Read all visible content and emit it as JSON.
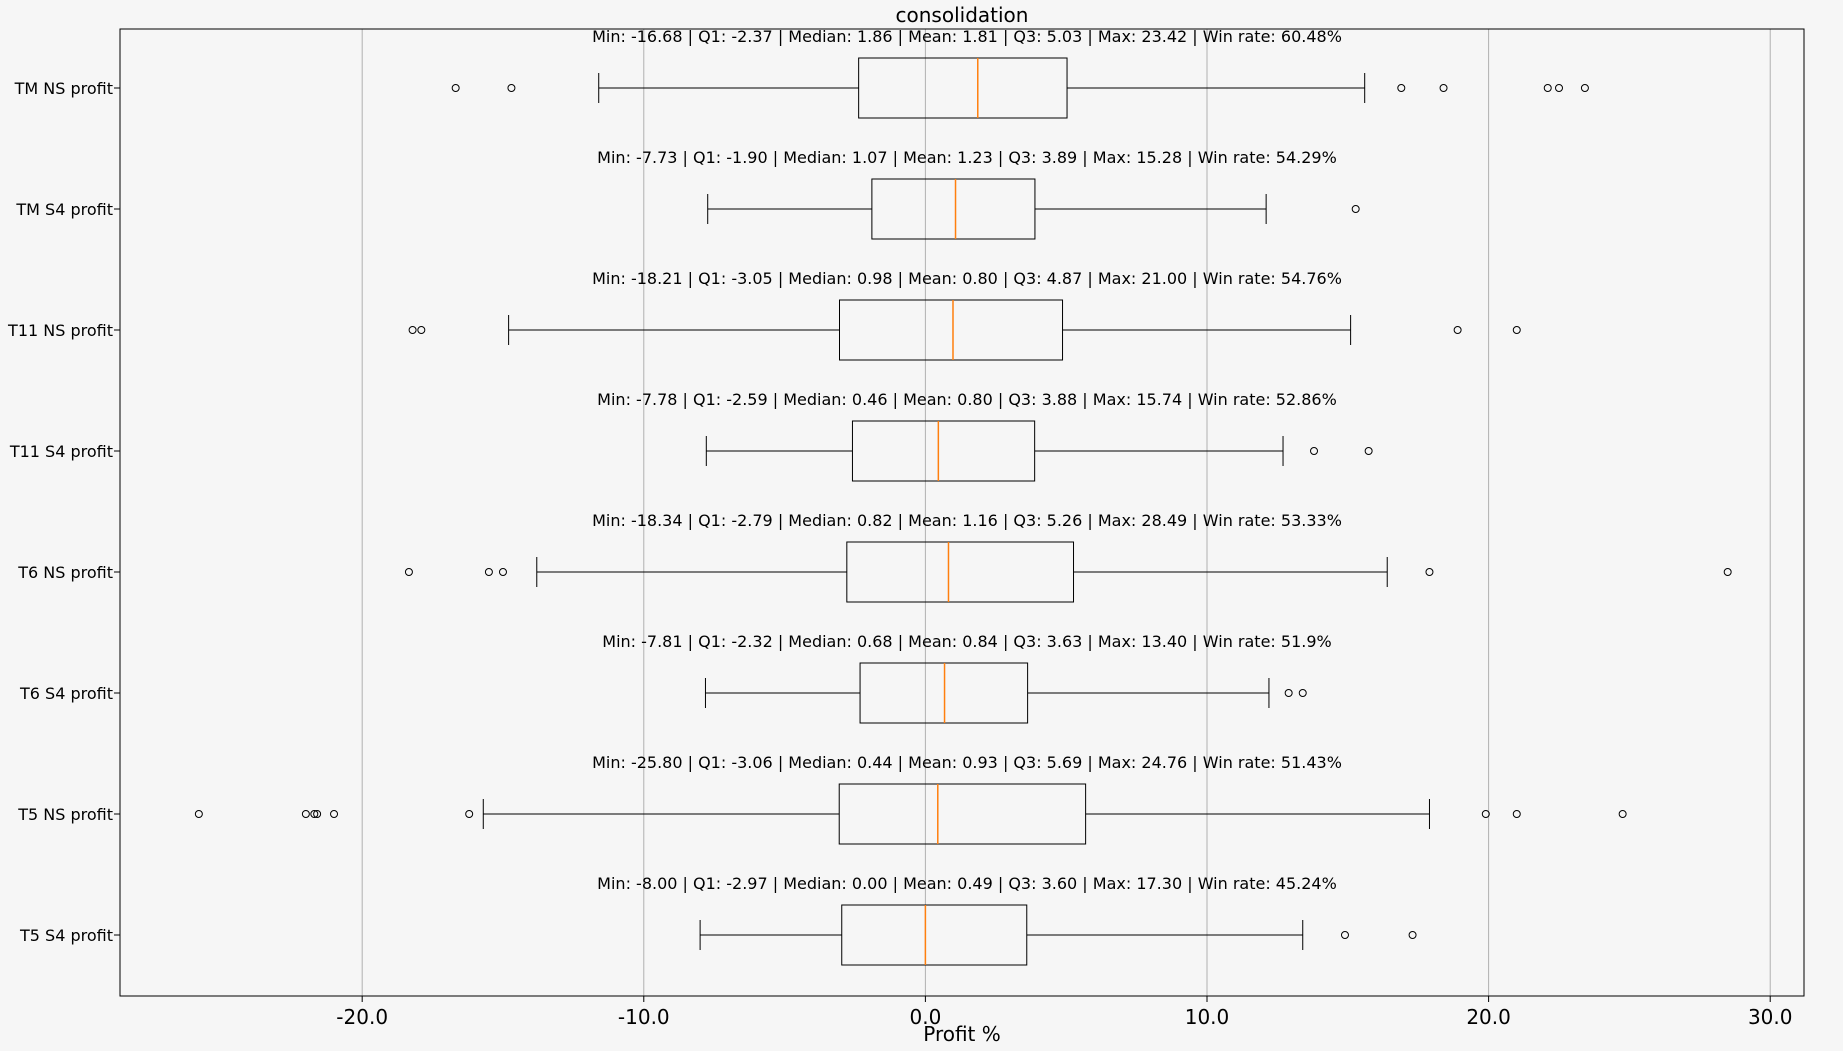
{
  "chart_data": {
    "type": "boxplot",
    "orientation": "horizontal",
    "title": "consolidation",
    "xlabel": "Profit %",
    "ylabel": "",
    "xlim": [
      -28.6,
      31.2
    ],
    "xticks": [
      -20,
      -10,
      0,
      10,
      20,
      30
    ],
    "xtick_labels": [
      "-20.0",
      "-10.0",
      "0.0",
      "10.0",
      "20.0",
      "30.0"
    ],
    "grid": "x",
    "colors": {
      "median": "#ff7f0e",
      "box": "#000000",
      "background": "#f6f6f6",
      "grid": "#b0b0b0"
    },
    "categories": [
      {
        "label": "TM NS profit",
        "stats": "Min: -16.68 | Q1: -2.37 | Median: 1.86 | Mean: 1.81 | Q3: 5.03 | Max: 23.42 | Win rate: 60.48%",
        "whisker_low": -11.6,
        "q1": -2.37,
        "median": 1.86,
        "q3": 5.03,
        "whisker_high": 15.6,
        "outliers": [
          -16.68,
          -14.7,
          16.9,
          18.4,
          22.1,
          22.5,
          23.42
        ]
      },
      {
        "label": "TM S4 profit",
        "stats": "Min: -7.73 | Q1: -1.90 | Median: 1.07 | Mean: 1.23 | Q3: 3.89 | Max: 15.28 | Win rate: 54.29%",
        "whisker_low": -7.73,
        "q1": -1.9,
        "median": 1.07,
        "q3": 3.89,
        "whisker_high": 12.1,
        "outliers": [
          15.28
        ]
      },
      {
        "label": "T11 NS profit",
        "stats": "Min: -18.21 | Q1: -3.05 | Median: 0.98 | Mean: 0.80 | Q3: 4.87 | Max: 21.00 | Win rate: 54.76%",
        "whisker_low": -14.8,
        "q1": -3.05,
        "median": 0.98,
        "q3": 4.87,
        "whisker_high": 15.1,
        "outliers": [
          -18.21,
          -17.9,
          18.9,
          21.0
        ]
      },
      {
        "label": "T11 S4 profit",
        "stats": "Min: -7.78 | Q1: -2.59 | Median: 0.46 | Mean: 0.80 | Q3: 3.88 | Max: 15.74 | Win rate: 52.86%",
        "whisker_low": -7.78,
        "q1": -2.59,
        "median": 0.46,
        "q3": 3.88,
        "whisker_high": 12.7,
        "outliers": [
          13.8,
          15.74
        ]
      },
      {
        "label": "T6 NS profit",
        "stats": "Min: -18.34 | Q1: -2.79 | Median: 0.82 | Mean: 1.16 | Q3: 5.26 | Max: 28.49 | Win rate: 53.33%",
        "whisker_low": -13.8,
        "q1": -2.79,
        "median": 0.82,
        "q3": 5.26,
        "whisker_high": 16.4,
        "outliers": [
          -18.34,
          -15.5,
          -15.0,
          17.9,
          28.49
        ]
      },
      {
        "label": "T6 S4 profit",
        "stats": "Min: -7.81 | Q1: -2.32 | Median: 0.68 | Mean: 0.84 | Q3: 3.63 | Max: 13.40 | Win rate: 51.9%",
        "whisker_low": -7.81,
        "q1": -2.32,
        "median": 0.68,
        "q3": 3.63,
        "whisker_high": 12.2,
        "outliers": [
          12.9,
          13.4
        ]
      },
      {
        "label": "T5 NS profit",
        "stats": "Min: -25.80 | Q1: -3.06 | Median: 0.44 | Mean: 0.93 | Q3: 5.69 | Max: 24.76 | Win rate: 51.43%",
        "whisker_low": -15.7,
        "q1": -3.06,
        "median": 0.44,
        "q3": 5.69,
        "whisker_high": 17.9,
        "outliers": [
          -25.8,
          -22.0,
          -21.7,
          -21.6,
          -21.0,
          -16.2,
          19.9,
          21.0,
          24.76
        ]
      },
      {
        "label": "T5 S4 profit",
        "stats": "Min: -8.00 | Q1: -2.97 | Median: 0.00 | Mean: 0.49 | Q3: 3.60 | Max: 17.30 | Win rate: 45.24%",
        "whisker_low": -8.0,
        "q1": -2.97,
        "median": 0.0,
        "q3": 3.6,
        "whisker_high": 13.4,
        "outliers": [
          14.9,
          17.3
        ]
      }
    ]
  }
}
